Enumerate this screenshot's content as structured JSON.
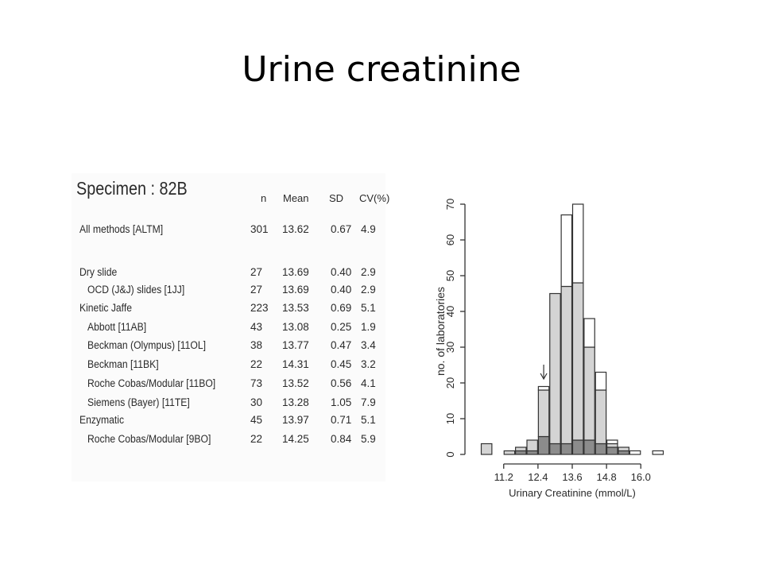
{
  "slide": {
    "title": "Urine creatinine"
  },
  "table": {
    "title": "Specimen : 82B",
    "columns": [
      "n",
      "Mean",
      "SD",
      "CV(%)"
    ],
    "rows": [
      {
        "name": "All methods [ALTM]",
        "n": "301",
        "mean": "13.62",
        "sd": "0.67",
        "cv": "4.9",
        "indent": false
      },
      {
        "name": "Dry slide",
        "n": "27",
        "mean": "13.69",
        "sd": "0.40",
        "cv": "2.9",
        "indent": false
      },
      {
        "name": "OCD (J&J) slides [1JJ]",
        "n": "27",
        "mean": "13.69",
        "sd": "0.40",
        "cv": "2.9",
        "indent": true
      },
      {
        "name": "Kinetic Jaffe",
        "n": "223",
        "mean": "13.53",
        "sd": "0.69",
        "cv": "5.1",
        "indent": false
      },
      {
        "name": "Abbott [11AB]",
        "n": "43",
        "mean": "13.08",
        "sd": "0.25",
        "cv": "1.9",
        "indent": true
      },
      {
        "name": "Beckman (Olympus) [11OL]",
        "n": "38",
        "mean": "13.77",
        "sd": "0.47",
        "cv": "3.4",
        "indent": true
      },
      {
        "name": "Beckman [11BK]",
        "n": "22",
        "mean": "14.31",
        "sd": "0.45",
        "cv": "3.2",
        "indent": true
      },
      {
        "name": "Roche Cobas/Modular [11BO]",
        "n": "73",
        "mean": "13.52",
        "sd": "0.56",
        "cv": "4.1",
        "indent": true
      },
      {
        "name": "Siemens (Bayer) [11TE]",
        "n": "30",
        "mean": "13.28",
        "sd": "1.05",
        "cv": "7.9",
        "indent": true
      },
      {
        "name": "Enzymatic",
        "n": "45",
        "mean": "13.97",
        "sd": "0.71",
        "cv": "5.1",
        "indent": false
      },
      {
        "name": "Roche Cobas/Modular [9BO]",
        "n": "22",
        "mean": "14.25",
        "sd": "0.84",
        "cv": "5.9",
        "indent": true
      }
    ]
  },
  "chart_data": {
    "type": "bar",
    "subtype": "stacked-histogram",
    "xlabel": "Urinary Creatinine (mmol/L)",
    "ylabel": "no. of laboratories",
    "ylim": [
      0,
      70
    ],
    "yticks": [
      0,
      10,
      20,
      30,
      40,
      50,
      60,
      70
    ],
    "xticks": [
      11.2,
      12.4,
      13.6,
      14.8,
      16.0
    ],
    "xlim": [
      10.4,
      16.8
    ],
    "bin_width": 0.4,
    "bins": [
      10.6,
      11.0,
      11.4,
      11.8,
      12.2,
      12.6,
      13.0,
      13.4,
      13.8,
      14.2,
      14.6,
      15.0,
      15.4,
      15.8,
      16.2,
      16.6
    ],
    "grid": false,
    "legend": "none",
    "series": [
      {
        "values": [
          0,
          0,
          0,
          1,
          1,
          5,
          3,
          3,
          4,
          4,
          3,
          2,
          1,
          0,
          0,
          0
        ],
        "color": "#8c8c8c"
      },
      {
        "values": [
          3,
          0,
          1,
          1,
          3,
          13,
          42,
          44,
          44,
          26,
          15,
          1,
          1,
          0,
          0,
          0
        ],
        "color": "#d4d4d4"
      },
      {
        "values": [
          0,
          0,
          0,
          0,
          0,
          1,
          0,
          20,
          22,
          8,
          5,
          1,
          0,
          1,
          0,
          1
        ],
        "color": "#ffffff"
      }
    ],
    "annotations": [
      {
        "type": "arrow",
        "x": 12.6,
        "y": 20,
        "direction": "down"
      }
    ],
    "colors": {
      "dark": "#8c8c8c",
      "light": "#d4d4d4",
      "outline": "#333333"
    }
  }
}
